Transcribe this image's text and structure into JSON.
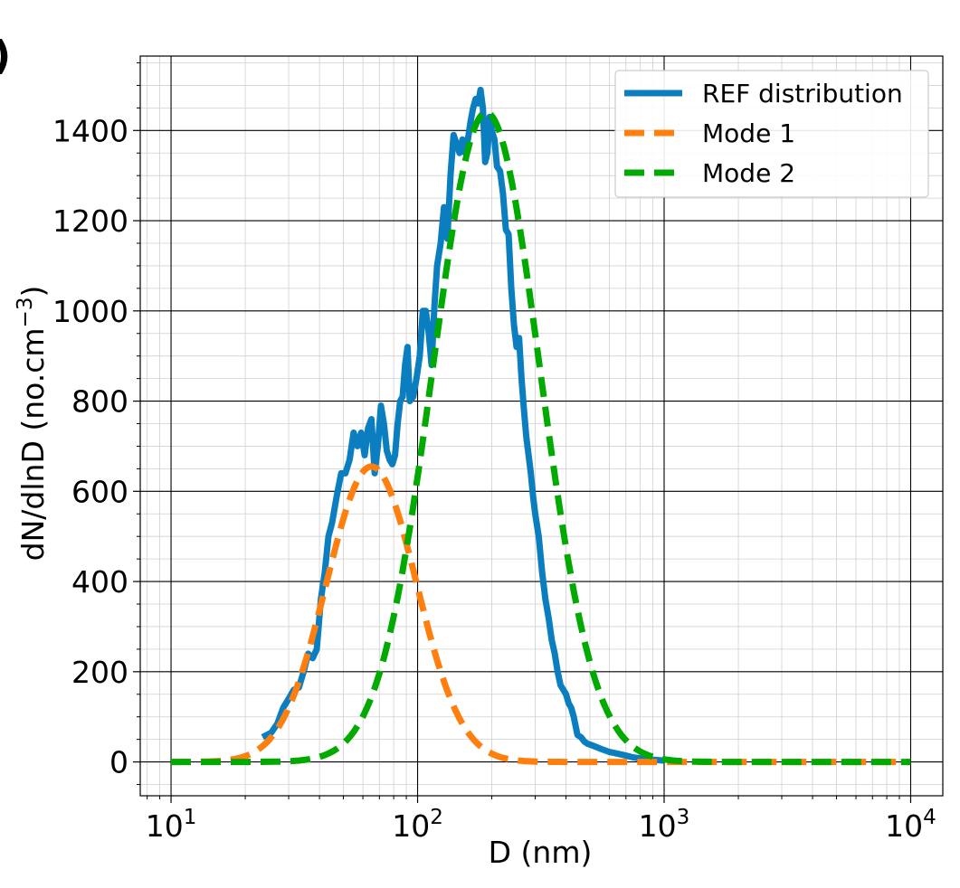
{
  "panel_label": ")",
  "chart_data": {
    "type": "line",
    "x_scale": "log",
    "xlabel": "D (nm)",
    "ylabel": "dN/dlnD (no.cm",
    "ylabel_sup": "−3",
    "ylabel_close": ")",
    "xlim": [
      7.5,
      13500
    ],
    "ylim": [
      -75,
      1565
    ],
    "x_major_ticks": [
      10,
      100,
      1000,
      10000
    ],
    "x_tick_labels": [
      {
        "base": "10",
        "exp": "1"
      },
      {
        "base": "10",
        "exp": "2"
      },
      {
        "base": "10",
        "exp": "3"
      },
      {
        "base": "10",
        "exp": "4"
      }
    ],
    "y_ticks": [
      0,
      200,
      400,
      600,
      800,
      1000,
      1200,
      1400
    ],
    "y_tick_labels": [
      "0",
      "200",
      "400",
      "600",
      "800",
      "1000",
      "1200",
      "1400"
    ],
    "grid": true,
    "legend": {
      "position": "top-right",
      "entries": [
        "REF distribution",
        "Mode 1",
        "Mode 2"
      ]
    },
    "series": [
      {
        "name": "REF distribution",
        "color": "#0a7ebf",
        "style": "solid",
        "x": [
          23.5,
          25.5,
          27,
          28.5,
          30,
          31.5,
          33,
          34.5,
          36,
          37.5,
          39,
          40.5,
          42,
          43.5,
          45,
          47,
          49,
          51,
          53,
          55,
          57,
          59,
          61,
          63,
          65,
          67,
          69,
          71,
          73,
          75,
          77,
          79,
          81,
          83,
          85,
          87,
          89,
          91,
          93,
          96,
          99,
          102,
          105,
          108,
          111,
          114,
          117,
          120,
          124,
          128,
          132,
          136,
          140,
          144,
          148,
          152,
          156,
          160,
          164,
          168,
          172,
          176,
          180,
          184,
          188,
          192,
          196,
          200,
          205,
          210,
          216,
          222,
          228,
          234,
          240,
          246,
          252,
          258,
          264,
          270,
          276,
          282,
          288,
          294,
          300,
          310,
          320,
          330,
          340,
          350,
          360,
          370,
          380,
          390,
          400,
          410,
          420,
          430,
          445,
          460,
          475,
          490,
          520,
          560,
          600,
          650,
          700,
          750,
          800,
          900,
          1000
        ],
        "y": [
          55,
          65,
          85,
          120,
          140,
          160,
          165,
          200,
          240,
          230,
          250,
          360,
          420,
          500,
          530,
          590,
          640,
          640,
          670,
          730,
          700,
          730,
          680,
          740,
          760,
          640,
          700,
          790,
          750,
          690,
          670,
          660,
          680,
          750,
          800,
          810,
          880,
          920,
          800,
          810,
          850,
          900,
          1000,
          1000,
          950,
          880,
          1010,
          1100,
          1150,
          1230,
          1160,
          1300,
          1390,
          1370,
          1350,
          1380,
          1350,
          1380,
          1420,
          1450,
          1470,
          1460,
          1490,
          1450,
          1330,
          1350,
          1430,
          1400,
          1380,
          1320,
          1310,
          1260,
          1180,
          1170,
          1050,
          970,
          920,
          940,
          850,
          780,
          720,
          680,
          640,
          590,
          550,
          500,
          420,
          360,
          320,
          270,
          240,
          200,
          170,
          160,
          150,
          130,
          120,
          100,
          60,
          55,
          45,
          40,
          35,
          28,
          22,
          18,
          14,
          10,
          8,
          5,
          3
        ]
      },
      {
        "name": "Mode 1",
        "color": "#ff7f0e",
        "style": "dashed",
        "gaussian": {
          "amplitude": 655,
          "center": 65,
          "sigma_ln": 0.42
        },
        "x_range": [
          10,
          10000
        ]
      },
      {
        "name": "Mode 2",
        "color": "#00aa00",
        "style": "dashed",
        "gaussian": {
          "amplitude": 1440,
          "center": 190,
          "sigma_ln": 0.5
        },
        "x_range": [
          10,
          10000
        ]
      }
    ]
  }
}
